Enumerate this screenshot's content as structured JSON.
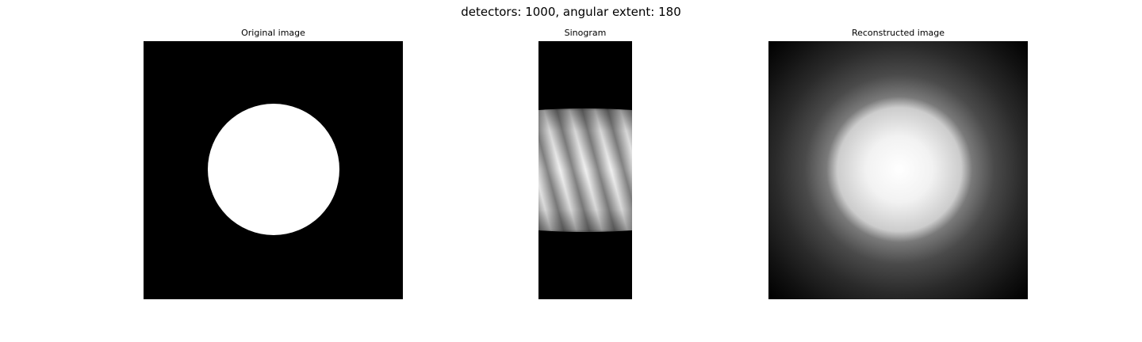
{
  "figure": {
    "suptitle": "detectors: 1000, angular extent: 180"
  },
  "panels": [
    {
      "title": "Original image"
    },
    {
      "title": "Sinogram"
    },
    {
      "title": "Reconstructed image"
    }
  ],
  "colors": {
    "background": "#ffffff",
    "image_black": "#000000",
    "image_white": "#ffffff",
    "colormap": "gray"
  }
}
